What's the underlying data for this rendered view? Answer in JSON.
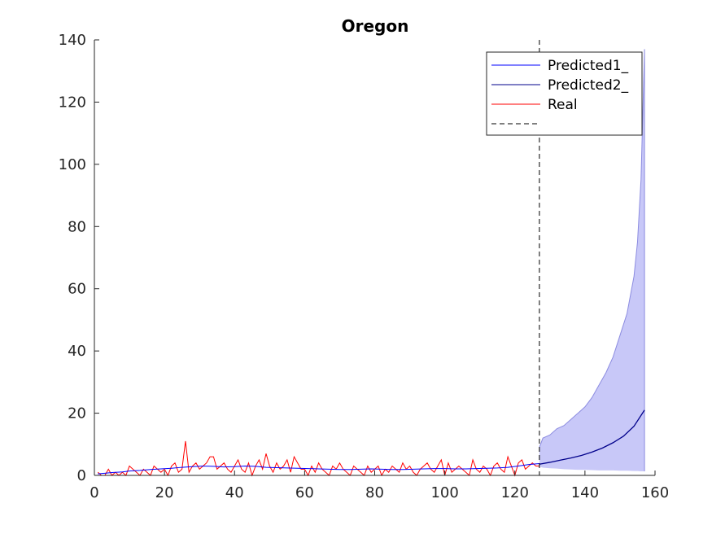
{
  "chart_data": {
    "type": "line",
    "title": "Oregon",
    "xlabel": "",
    "ylabel": "",
    "xlim": [
      0,
      160
    ],
    "ylim": [
      0,
      140
    ],
    "xticks": [
      0,
      20,
      40,
      60,
      80,
      100,
      120,
      140,
      160
    ],
    "yticks": [
      0,
      20,
      40,
      60,
      80,
      100,
      120,
      140
    ],
    "grid": false,
    "legend_position": "top-right",
    "colors": {
      "predicted1": "#0000ff",
      "predicted2": "#00008b",
      "real": "#ff0000",
      "band_fill": "#c8c8f8",
      "band_edge": "#8c8ce0",
      "vline": "#000000"
    },
    "legend": [
      "Predicted1_",
      "Predicted2_",
      "Real",
      ""
    ],
    "vline_x": 127,
    "series": [
      {
        "name": "Real",
        "x": [
          1,
          2,
          3,
          4,
          5,
          6,
          7,
          8,
          9,
          10,
          11,
          12,
          13,
          14,
          15,
          16,
          17,
          18,
          19,
          20,
          21,
          22,
          23,
          24,
          25,
          26,
          27,
          28,
          29,
          30,
          31,
          32,
          33,
          34,
          35,
          36,
          37,
          38,
          39,
          40,
          41,
          42,
          43,
          44,
          45,
          46,
          47,
          48,
          49,
          50,
          51,
          52,
          53,
          54,
          55,
          56,
          57,
          58,
          59,
          60,
          61,
          62,
          63,
          64,
          65,
          66,
          67,
          68,
          69,
          70,
          71,
          72,
          73,
          74,
          75,
          76,
          77,
          78,
          79,
          80,
          81,
          82,
          83,
          84,
          85,
          86,
          87,
          88,
          89,
          90,
          91,
          92,
          93,
          94,
          95,
          96,
          97,
          98,
          99,
          100,
          101,
          102,
          103,
          104,
          105,
          106,
          107,
          108,
          109,
          110,
          111,
          112,
          113,
          114,
          115,
          116,
          117,
          118,
          119,
          120,
          121,
          122,
          123,
          124,
          125,
          126,
          127
        ],
        "y": [
          1,
          0,
          0,
          2,
          0,
          1,
          0,
          1,
          0,
          3,
          2,
          1,
          0,
          2,
          1,
          0,
          3,
          2,
          1,
          2,
          0,
          3,
          4,
          1,
          2,
          11,
          1,
          3,
          4,
          2,
          3,
          4,
          6,
          6,
          2,
          3,
          4,
          2,
          1,
          3,
          5,
          2,
          1,
          4,
          0,
          3,
          5,
          2,
          7,
          3,
          1,
          4,
          2,
          3,
          5,
          1,
          6,
          4,
          2,
          2,
          0,
          3,
          1,
          4,
          2,
          1,
          0,
          3,
          2,
          4,
          2,
          1,
          0,
          3,
          2,
          1,
          0,
          3,
          1,
          2,
          3,
          0,
          2,
          1,
          3,
          2,
          1,
          4,
          2,
          3,
          1,
          0,
          2,
          3,
          4,
          2,
          1,
          3,
          5,
          0,
          4,
          1,
          2,
          3,
          2,
          1,
          0,
          5,
          2,
          1,
          3,
          2,
          0,
          3,
          4,
          2,
          1,
          6,
          3,
          0,
          4,
          5,
          2,
          3,
          4,
          3,
          3
        ]
      },
      {
        "name": "Predicted1_",
        "x": [
          1,
          3,
          5,
          8,
          10,
          13,
          16,
          19,
          22,
          25,
          28,
          31,
          34,
          37,
          40,
          43,
          46,
          49,
          52,
          55,
          58,
          61,
          64,
          67,
          70,
          73,
          76,
          79,
          82,
          85,
          88,
          91,
          94,
          97,
          100,
          103,
          106,
          109,
          112,
          115,
          118,
          121,
          124,
          127
        ],
        "y": [
          0.5,
          0.7,
          0.9,
          1.1,
          1.4,
          1.6,
          1.9,
          2.1,
          2.3,
          2.6,
          2.8,
          3.0,
          2.9,
          2.7,
          2.8,
          3.0,
          2.9,
          2.6,
          2.5,
          2.4,
          2.3,
          2.2,
          2.1,
          2.0,
          1.9,
          1.9,
          2.0,
          2.1,
          2.0,
          1.9,
          1.9,
          2.0,
          2.1,
          2.2,
          2.2,
          2.1,
          2.1,
          2.2,
          2.3,
          2.4,
          2.6,
          3.0,
          3.5,
          3.8
        ]
      },
      {
        "name": "Predicted2_",
        "x": [
          127,
          130,
          133,
          136,
          139,
          142,
          145,
          148,
          151,
          154,
          157
        ],
        "y": [
          3.6,
          4.2,
          4.9,
          5.6,
          6.4,
          7.5,
          8.8,
          10.5,
          12.6,
          15.8,
          21
        ]
      }
    ],
    "band": {
      "x": [
        127,
        128,
        130,
        132,
        134,
        136,
        138,
        140,
        142,
        144,
        146,
        148,
        150,
        152,
        154,
        155,
        156,
        157
      ],
      "low": [
        2.8,
        2.5,
        2.3,
        2.2,
        2.0,
        1.9,
        1.8,
        1.8,
        1.7,
        1.6,
        1.6,
        1.6,
        1.5,
        1.5,
        1.4,
        1.4,
        1.3,
        1.3
      ],
      "high": [
        9,
        12,
        13,
        15,
        16,
        18,
        20,
        22,
        25,
        29,
        33,
        38,
        45,
        52,
        64,
        75,
        95,
        137
      ]
    }
  }
}
